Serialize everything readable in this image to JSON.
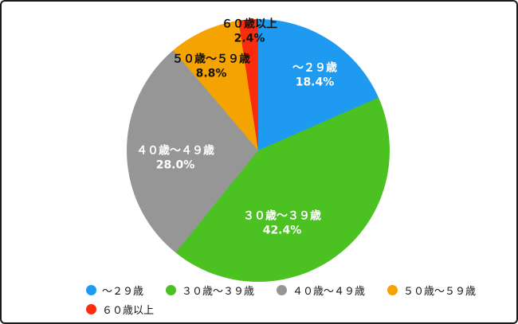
{
  "chart_data": {
    "type": "pie",
    "title": "",
    "categories": [
      "〜２９歳",
      "３０歳〜３９歳",
      "４０歳〜４９歳",
      "５０歳〜５９歳",
      "６０歳以上"
    ],
    "values": [
      18.4,
      42.4,
      28.0,
      8.8,
      2.4
    ],
    "value_labels": [
      "18.4%",
      "42.4%",
      "28.0%",
      "8.8%",
      "2.4%"
    ],
    "colors": [
      "#1e9bf0",
      "#4cc122",
      "#969696",
      "#f5a300",
      "#fb2c0d"
    ],
    "start_angle_deg": 0,
    "direction": "clockwise",
    "legend_position": "bottom"
  }
}
